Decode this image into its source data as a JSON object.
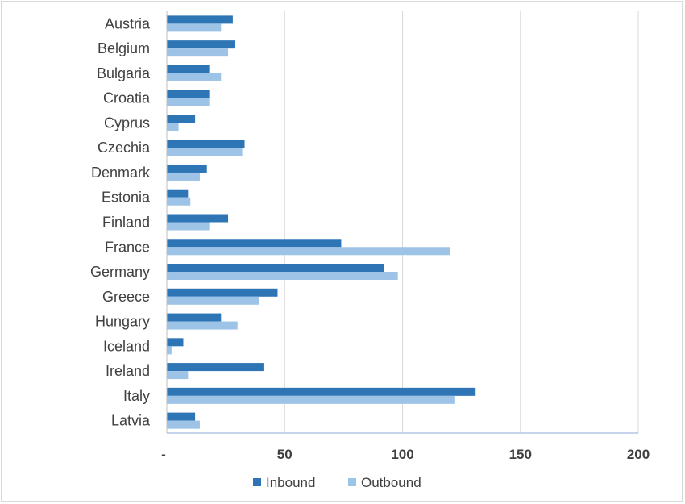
{
  "chart_data": {
    "type": "bar",
    "orientation": "horizontal",
    "categories": [
      "Austria",
      "Belgium",
      "Bulgaria",
      "Croatia",
      "Cyprus",
      "Czechia",
      "Denmark",
      "Estonia",
      "Finland",
      "France",
      "Germany",
      "Greece",
      "Hungary",
      "Iceland",
      "Ireland",
      "Italy",
      "Latvia"
    ],
    "series": [
      {
        "name": "Inbound",
        "color": "#2e75b6",
        "values": [
          28,
          29,
          18,
          18,
          12,
          33,
          17,
          9,
          26,
          74,
          92,
          47,
          23,
          7,
          41,
          131,
          12
        ]
      },
      {
        "name": "Outbound",
        "color": "#9dc3e6",
        "values": [
          23,
          26,
          23,
          18,
          5,
          32,
          14,
          10,
          18,
          120,
          98,
          39,
          30,
          2,
          9,
          122,
          14
        ]
      }
    ],
    "xlim": [
      0,
      200
    ],
    "xticks": [
      0,
      50,
      100,
      150,
      200
    ],
    "xtick_labels": [
      "-",
      "50",
      "100",
      "150",
      "200"
    ],
    "title": "",
    "xlabel": "",
    "ylabel": "",
    "grid": "vertical",
    "legend": "bottom"
  }
}
